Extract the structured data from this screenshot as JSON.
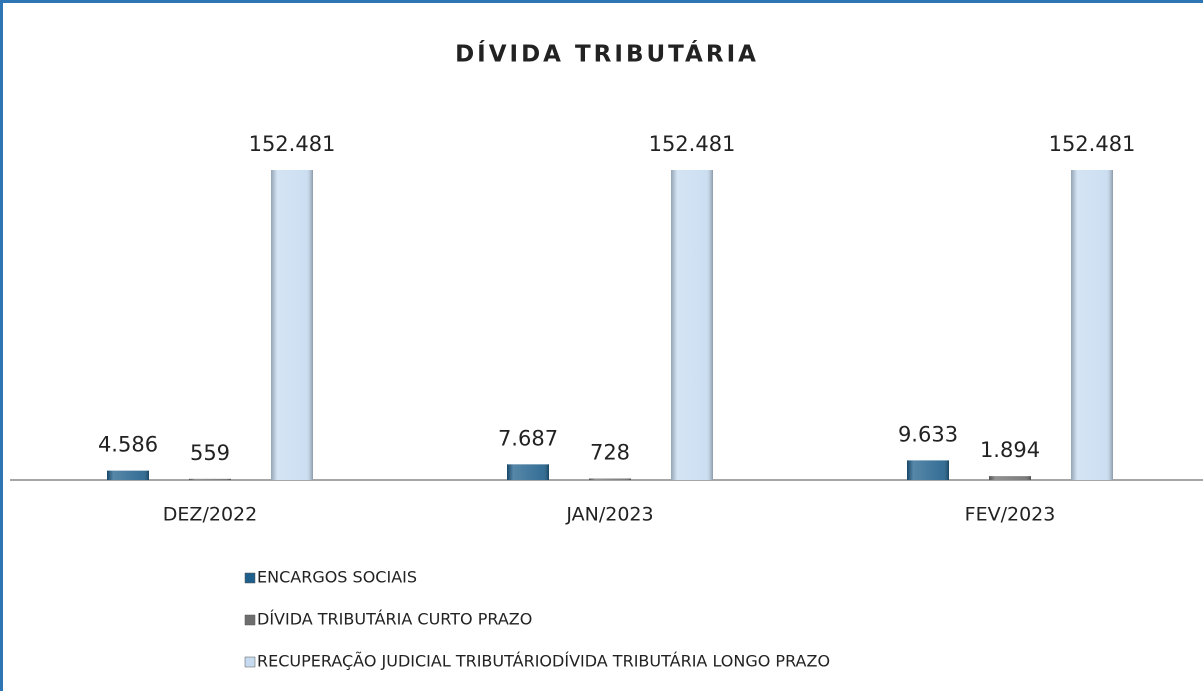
{
  "chart_data": {
    "type": "bar",
    "title": "DÍVIDA TRIBUTÁRIA",
    "categories": [
      "DEZ/2022",
      "JAN/2023",
      "FEV/2023"
    ],
    "series": [
      {
        "name": "ENCARGOS SOCIAIS",
        "color": "#1f5f8b",
        "values": [
          4586,
          7687,
          9633
        ],
        "value_labels": [
          "4.586",
          "7.687",
          "9.633"
        ]
      },
      {
        "name": "DÍVIDA TRIBUTÁRIA CURTO PRAZO",
        "color": "#6e6e6e",
        "values": [
          559,
          728,
          1894
        ],
        "value_labels": [
          "559",
          "728",
          "1.894"
        ]
      },
      {
        "name": "RECUPERAÇÃO JUDICIAL TRIBUTÁRIODÍVIDA TRIBUTÁRIA LONGO PRAZO",
        "color": "#c6dbf0",
        "values": [
          152481,
          152481,
          152481
        ],
        "value_labels": [
          "152.481",
          "152.481",
          "152.481"
        ]
      }
    ]
  }
}
